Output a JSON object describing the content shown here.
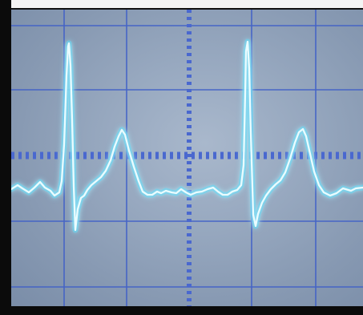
{
  "scene": {
    "subject": "oscilloscope-ecg-waveform",
    "colors": {
      "frame": "#0b0b0b",
      "label_strip": "#f4f4f4",
      "screen_glow": "#a9b8cc",
      "screen_edge": "#7a8da8",
      "grid": "#3f5fc8",
      "axis_dashes": "#4a68cf",
      "trace_core": "#eafcff",
      "trace_glow": "#5fd6f2"
    }
  }
}
